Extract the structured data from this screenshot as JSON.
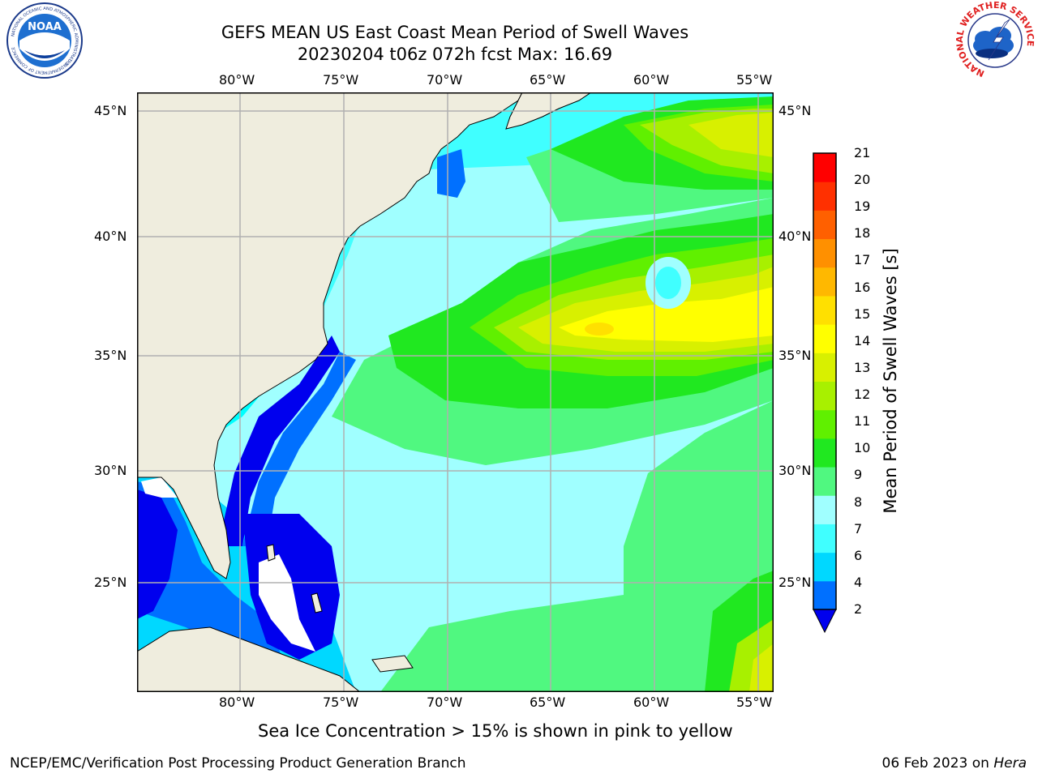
{
  "header": {
    "title_line1": "GEFS MEAN US East Coast Mean Period of Swell Waves",
    "title_line2": "20230204 t06z 072h fcst   Max: 16.69"
  },
  "logos": {
    "left": {
      "name": "noaa-logo",
      "text": "NOAA",
      "ring_text": "NATIONAL OCEANIC AND ATMOSPHERIC ADMINISTRATION",
      "ring_text_bottom": "U.S. DEPARTMENT OF COMMERCE"
    },
    "right": {
      "name": "nws-logo",
      "ring_text": "NATIONAL WEATHER SERVICE"
    }
  },
  "map": {
    "lon_ticks": [
      "80°W",
      "75°W",
      "70°W",
      "65°W",
      "60°W",
      "55°W"
    ],
    "lat_ticks": [
      "45°N",
      "40°N",
      "35°N",
      "30°N",
      "25°N"
    ],
    "land_color": "#efedde",
    "grid_color": "#b0b0b0"
  },
  "colorbar": {
    "label": "Mean Period of Swell Waves [s]",
    "levels": [
      "2",
      "4",
      "6",
      "7",
      "8",
      "9",
      "10",
      "11",
      "12",
      "13",
      "14",
      "15",
      "16",
      "17",
      "18",
      "19",
      "20",
      "21"
    ],
    "colors": [
      "#0070ff",
      "#00d8ff",
      "#40ffff",
      "#a0ffff",
      "#50f880",
      "#20e820",
      "#60f000",
      "#a8f000",
      "#d8f000",
      "#ffff00",
      "#ffe000",
      "#ffb800",
      "#ff9000",
      "#ff6000",
      "#ff3000",
      "#ff0000"
    ],
    "under_color": "#0000ee"
  },
  "caption": "Sea Ice Concentration > 15% is shown in pink to yellow",
  "footer": {
    "left": "NCEP/EMC/Verification Post Processing Product Generation Branch",
    "right_date": "06 Feb 2023 on ",
    "right_host": "Hera"
  }
}
